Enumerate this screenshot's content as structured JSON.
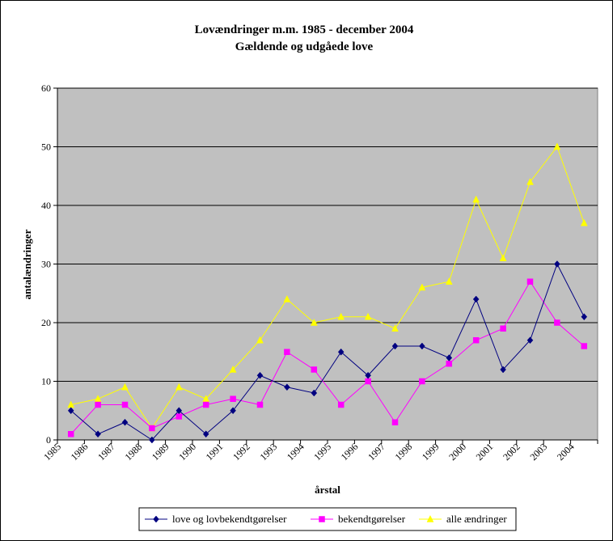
{
  "chart_data": {
    "type": "line",
    "title": "Lovændringer m.m. 1985 - december 2004",
    "subtitle": "Gældende og udgåede love",
    "xlabel": "årstal",
    "ylabel": "antalændringer",
    "ylim": [
      0,
      60
    ],
    "yticks": [
      "0",
      "10",
      "20",
      "30",
      "40",
      "50",
      "60"
    ],
    "categories": [
      "1985",
      "1986",
      "1987",
      "1988",
      "1989",
      "1990",
      "1991",
      "1992",
      "1993",
      "1994",
      "1995",
      "1996",
      "1997",
      "1998",
      "1999",
      "2000",
      "2001",
      "2002",
      "2003",
      "2004"
    ],
    "grid": true,
    "legend_position": "bottom",
    "series": [
      {
        "name": "love og lovbekendtgørelser",
        "color": "#000080",
        "marker": "diamond",
        "values": [
          5,
          1,
          3,
          0,
          5,
          1,
          5,
          11,
          9,
          8,
          15,
          11,
          16,
          16,
          14,
          24,
          12,
          17,
          30,
          21
        ]
      },
      {
        "name": "bekendtgørelser",
        "color": "#ff00ff",
        "marker": "square",
        "values": [
          1,
          6,
          6,
          2,
          4,
          6,
          7,
          6,
          15,
          12,
          6,
          10,
          3,
          10,
          13,
          17,
          19,
          27,
          20,
          16
        ]
      },
      {
        "name": "alle ændringer",
        "color": "#ffff00",
        "marker": "triangle",
        "values": [
          6,
          7,
          9,
          2,
          9,
          7,
          12,
          17,
          24,
          20,
          21,
          21,
          19,
          26,
          27,
          41,
          31,
          44,
          50,
          37
        ]
      }
    ]
  }
}
